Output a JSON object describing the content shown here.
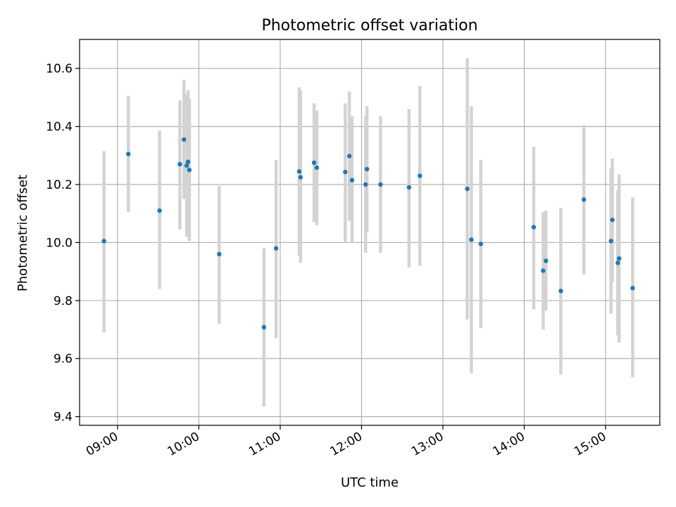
{
  "chart_data": {
    "type": "scatter",
    "title": "Photometric offset variation",
    "xlabel": "UTC time",
    "ylabel": "Photometric offset",
    "ylim": [
      9.37,
      10.7
    ],
    "xlim": [
      "08:32",
      "15:40"
    ],
    "x_ticks": [
      "09:00",
      "10:00",
      "11:00",
      "12:00",
      "13:00",
      "14:00",
      "15:00"
    ],
    "y_ticks": [
      "9.4",
      "9.6",
      "9.8",
      "10.0",
      "10.2",
      "10.4",
      "10.6"
    ],
    "grid": true,
    "colors": {
      "points": "#1f77b4",
      "errorbars": "#d3d3d3",
      "grid": "#b0b0b0"
    },
    "points": [
      {
        "x": "08:50",
        "y": 10.005,
        "lo": 9.69,
        "hi": 10.315
      },
      {
        "x": "09:08",
        "y": 10.305,
        "lo": 10.105,
        "hi": 10.505
      },
      {
        "x": "09:31",
        "y": 10.11,
        "lo": 9.84,
        "hi": 10.385
      },
      {
        "x": "09:46",
        "y": 10.27,
        "lo": 10.045,
        "hi": 10.49
      },
      {
        "x": "09:49",
        "y": 10.355,
        "lo": 10.15,
        "hi": 10.56
      },
      {
        "x": "09:51",
        "y": 10.265,
        "lo": 10.02,
        "hi": 10.51
      },
      {
        "x": "09:52",
        "y": 10.278,
        "lo": 10.03,
        "hi": 10.525
      },
      {
        "x": "09:53",
        "y": 10.25,
        "lo": 10.005,
        "hi": 10.495
      },
      {
        "x": "10:15",
        "y": 9.96,
        "lo": 9.72,
        "hi": 10.195
      },
      {
        "x": "10:48",
        "y": 9.708,
        "lo": 9.435,
        "hi": 9.98
      },
      {
        "x": "10:57",
        "y": 9.98,
        "lo": 9.67,
        "hi": 10.285
      },
      {
        "x": "11:14",
        "y": 10.245,
        "lo": 9.955,
        "hi": 10.535
      },
      {
        "x": "11:15",
        "y": 10.225,
        "lo": 9.93,
        "hi": 10.525
      },
      {
        "x": "11:25",
        "y": 10.275,
        "lo": 10.07,
        "hi": 10.48
      },
      {
        "x": "11:27",
        "y": 10.258,
        "lo": 10.06,
        "hi": 10.455
      },
      {
        "x": "11:48",
        "y": 10.243,
        "lo": 10.0,
        "hi": 10.48
      },
      {
        "x": "11:51",
        "y": 10.298,
        "lo": 10.075,
        "hi": 10.52
      },
      {
        "x": "11:53",
        "y": 10.215,
        "lo": 10.0,
        "hi": 10.435
      },
      {
        "x": "12:03",
        "y": 10.2,
        "lo": 9.965,
        "hi": 10.435
      },
      {
        "x": "12:04",
        "y": 10.253,
        "lo": 10.035,
        "hi": 10.47
      },
      {
        "x": "12:14",
        "y": 10.2,
        "lo": 9.965,
        "hi": 10.435
      },
      {
        "x": "12:35",
        "y": 10.19,
        "lo": 9.915,
        "hi": 10.46
      },
      {
        "x": "12:43",
        "y": 10.23,
        "lo": 9.92,
        "hi": 10.54
      },
      {
        "x": "13:18",
        "y": 10.185,
        "lo": 9.735,
        "hi": 10.635
      },
      {
        "x": "13:21",
        "y": 10.01,
        "lo": 9.55,
        "hi": 10.47
      },
      {
        "x": "13:28",
        "y": 9.995,
        "lo": 9.705,
        "hi": 10.285
      },
      {
        "x": "14:07",
        "y": 10.053,
        "lo": 9.77,
        "hi": 10.33
      },
      {
        "x": "14:14",
        "y": 9.903,
        "lo": 9.7,
        "hi": 10.105
      },
      {
        "x": "14:16",
        "y": 9.937,
        "lo": 9.765,
        "hi": 10.11
      },
      {
        "x": "14:27",
        "y": 9.833,
        "lo": 9.545,
        "hi": 10.12
      },
      {
        "x": "14:44",
        "y": 10.148,
        "lo": 9.89,
        "hi": 10.405
      },
      {
        "x": "15:04",
        "y": 10.005,
        "lo": 9.755,
        "hi": 10.255
      },
      {
        "x": "15:05",
        "y": 10.078,
        "lo": 9.865,
        "hi": 10.29
      },
      {
        "x": "15:09",
        "y": 9.93,
        "lo": 9.68,
        "hi": 10.18
      },
      {
        "x": "15:10",
        "y": 9.945,
        "lo": 9.655,
        "hi": 10.235
      },
      {
        "x": "15:20",
        "y": 9.843,
        "lo": 9.535,
        "hi": 10.155
      }
    ]
  }
}
